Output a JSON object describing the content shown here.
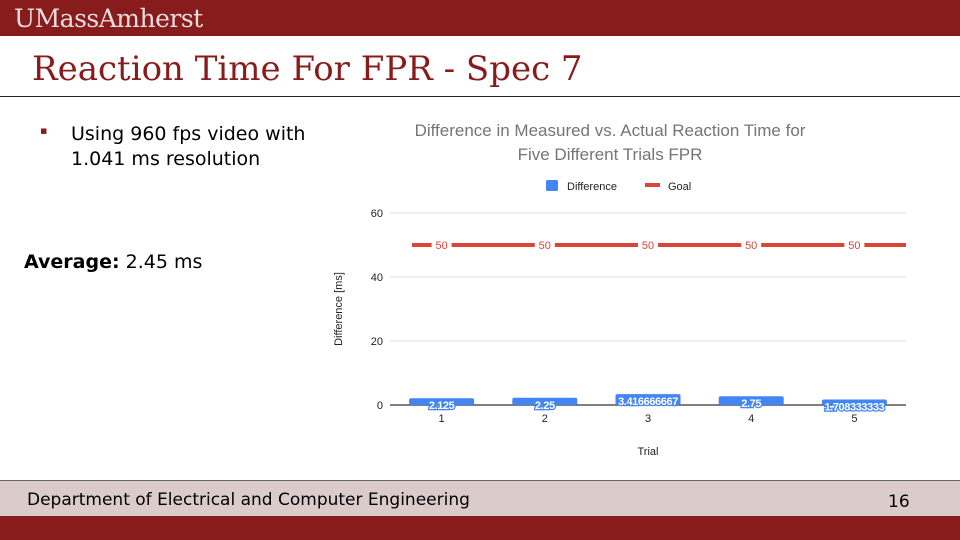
{
  "header": {
    "logo_text": "UMassAmherst"
  },
  "slide": {
    "title": "Reaction Time For FPR - Spec 7",
    "bullet": "Using 960 fps video with 1.041 ms resolution",
    "average_label": "Average:",
    "average_value": "2.45 ms"
  },
  "footer": {
    "department": "Department of Electrical and Computer Engineering",
    "page_number": "16"
  },
  "colors": {
    "brand": "#881c1c",
    "difference": "#4285f4",
    "goal": "#db4437",
    "footer_band": "#dccbcb"
  },
  "chart_data": {
    "type": "bar",
    "title": "Difference in Measured vs. Actual Reaction Time for Five Different Trials FPR",
    "xlabel": "Trial",
    "ylabel": "Difference [ms]",
    "categories": [
      "1",
      "2",
      "3",
      "4",
      "5"
    ],
    "ylim": [
      0,
      60
    ],
    "yticks": [
      "0",
      "20",
      "40",
      "60"
    ],
    "grid": true,
    "legend_position": "top",
    "series": [
      {
        "name": "Difference",
        "kind": "bar",
        "color": "#4285f4",
        "values": [
          2.125,
          2.25,
          3.416666667,
          2.75,
          1.708333333
        ],
        "labels": [
          "2.125",
          "2.25",
          "3.416666667",
          "2.75",
          "1.708333333"
        ]
      },
      {
        "name": "Goal",
        "kind": "line",
        "color": "#db4437",
        "values": [
          50,
          50,
          50,
          50,
          50
        ],
        "labels": [
          "50",
          "50",
          "50",
          "50",
          "50"
        ]
      }
    ]
  }
}
